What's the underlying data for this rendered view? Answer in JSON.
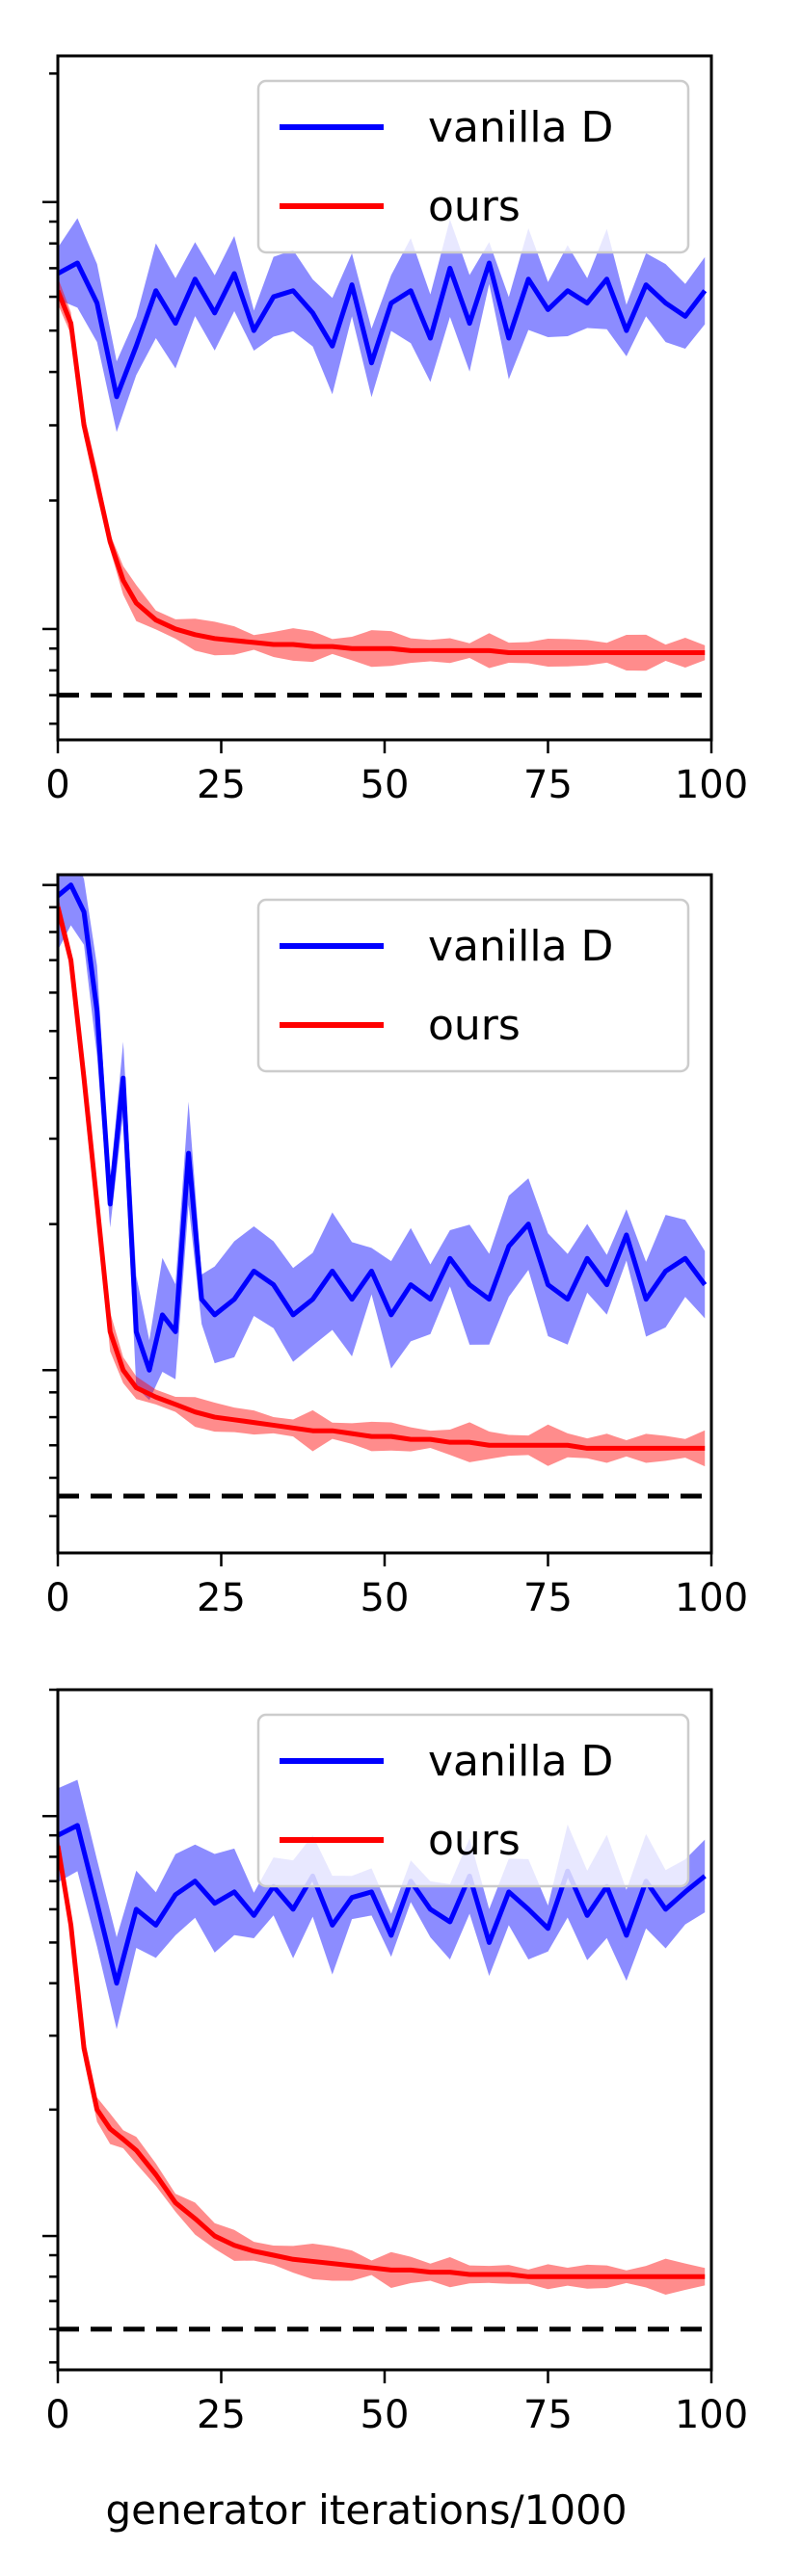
{
  "figure": {
    "xlabel": "generator iterations/1000"
  },
  "chart_data": [
    {
      "type": "line",
      "xlim": [
        0,
        100
      ],
      "xticks": [
        "0",
        "25",
        "50",
        "75",
        "100"
      ],
      "ylog": true,
      "grid": false,
      "legend": {
        "placement": "top-right",
        "entries": [
          "vanilla D",
          "ours"
        ]
      },
      "colors": {
        "vanilla D": "#0000ff",
        "ours": "#ff0000",
        "reference": "#000000"
      },
      "reference_line": 0.07,
      "series": [
        {
          "name": "vanilla D",
          "x": [
            0,
            3,
            6,
            9,
            12,
            15,
            18,
            21,
            24,
            27,
            30,
            33,
            36,
            39,
            42,
            45,
            48,
            51,
            54,
            57,
            60,
            63,
            66,
            69,
            72,
            75,
            78,
            81,
            84,
            87,
            90,
            93,
            96,
            99
          ],
          "y": [
            0.68,
            0.72,
            0.58,
            0.35,
            0.46,
            0.62,
            0.52,
            0.66,
            0.55,
            0.68,
            0.5,
            0.6,
            0.62,
            0.55,
            0.46,
            0.64,
            0.42,
            0.58,
            0.62,
            0.48,
            0.7,
            0.52,
            0.72,
            0.48,
            0.66,
            0.56,
            0.62,
            0.58,
            0.66,
            0.5,
            0.64,
            0.58,
            0.54,
            0.62
          ]
        },
        {
          "name": "ours",
          "x": [
            0,
            2,
            4,
            6,
            8,
            10,
            12,
            15,
            18,
            21,
            24,
            27,
            30,
            33,
            36,
            39,
            42,
            45,
            48,
            51,
            54,
            57,
            60,
            63,
            66,
            69,
            72,
            75,
            78,
            81,
            84,
            87,
            90,
            93,
            96,
            99
          ],
          "y": [
            0.62,
            0.52,
            0.3,
            0.22,
            0.16,
            0.13,
            0.115,
            0.105,
            0.1,
            0.097,
            0.095,
            0.094,
            0.093,
            0.092,
            0.092,
            0.091,
            0.091,
            0.09,
            0.09,
            0.09,
            0.089,
            0.089,
            0.089,
            0.089,
            0.089,
            0.088,
            0.088,
            0.088,
            0.088,
            0.088,
            0.088,
            0.088,
            0.088,
            0.088,
            0.088,
            0.088
          ]
        }
      ]
    },
    {
      "type": "line",
      "xlim": [
        0,
        100
      ],
      "xticks": [
        "0",
        "25",
        "50",
        "75",
        "100"
      ],
      "ylog": true,
      "grid": false,
      "legend": {
        "placement": "top-right",
        "entries": [
          "vanilla D",
          "ours"
        ]
      },
      "colors": {
        "vanilla D": "#0000ff",
        "ours": "#ff0000",
        "reference": "#000000"
      },
      "reference_line": 0.055,
      "series": [
        {
          "name": "vanilla D",
          "x": [
            0,
            2,
            4,
            6,
            8,
            10,
            12,
            14,
            16,
            18,
            20,
            22,
            24,
            27,
            30,
            33,
            36,
            39,
            42,
            45,
            48,
            51,
            54,
            57,
            60,
            63,
            66,
            69,
            72,
            75,
            78,
            81,
            84,
            87,
            90,
            93,
            96,
            99
          ],
          "y": [
            0.95,
            1.0,
            0.88,
            0.55,
            0.22,
            0.4,
            0.12,
            0.1,
            0.13,
            0.12,
            0.28,
            0.14,
            0.13,
            0.14,
            0.16,
            0.15,
            0.13,
            0.14,
            0.16,
            0.14,
            0.16,
            0.13,
            0.15,
            0.14,
            0.17,
            0.15,
            0.14,
            0.18,
            0.2,
            0.15,
            0.14,
            0.17,
            0.15,
            0.19,
            0.14,
            0.16,
            0.17,
            0.15
          ]
        },
        {
          "name": "ours",
          "x": [
            0,
            2,
            4,
            6,
            8,
            10,
            12,
            15,
            18,
            21,
            24,
            27,
            30,
            33,
            36,
            39,
            42,
            45,
            48,
            51,
            54,
            57,
            60,
            63,
            66,
            69,
            72,
            75,
            78,
            81,
            84,
            87,
            90,
            93,
            96,
            99
          ],
          "y": [
            0.9,
            0.7,
            0.4,
            0.22,
            0.12,
            0.1,
            0.092,
            0.088,
            0.085,
            0.082,
            0.08,
            0.079,
            0.078,
            0.077,
            0.076,
            0.075,
            0.075,
            0.074,
            0.073,
            0.073,
            0.072,
            0.072,
            0.071,
            0.071,
            0.07,
            0.07,
            0.07,
            0.07,
            0.07,
            0.069,
            0.069,
            0.069,
            0.069,
            0.069,
            0.069,
            0.069
          ]
        }
      ]
    },
    {
      "type": "line",
      "xlim": [
        0,
        100
      ],
      "xticks": [
        "0",
        "25",
        "50",
        "75",
        "100"
      ],
      "ylog": true,
      "grid": false,
      "legend": {
        "placement": "top-right",
        "entries": [
          "vanilla D",
          "ours"
        ]
      },
      "colors": {
        "vanilla D": "#0000ff",
        "ours": "#ff0000",
        "reference": "#000000"
      },
      "reference_line": 0.06,
      "series": [
        {
          "name": "vanilla D",
          "x": [
            0,
            3,
            6,
            9,
            12,
            15,
            18,
            21,
            24,
            27,
            30,
            33,
            36,
            39,
            42,
            45,
            48,
            51,
            54,
            57,
            60,
            63,
            66,
            69,
            72,
            75,
            78,
            81,
            84,
            87,
            90,
            93,
            96,
            99
          ],
          "y": [
            0.9,
            0.95,
            0.62,
            0.4,
            0.6,
            0.55,
            0.65,
            0.7,
            0.62,
            0.66,
            0.58,
            0.68,
            0.6,
            0.72,
            0.55,
            0.64,
            0.66,
            0.52,
            0.7,
            0.6,
            0.56,
            0.72,
            0.5,
            0.66,
            0.6,
            0.54,
            0.74,
            0.58,
            0.68,
            0.52,
            0.7,
            0.6,
            0.66,
            0.72
          ]
        },
        {
          "name": "ours",
          "x": [
            0,
            2,
            4,
            6,
            8,
            10,
            12,
            15,
            18,
            21,
            24,
            27,
            30,
            33,
            36,
            39,
            42,
            45,
            48,
            51,
            54,
            57,
            60,
            63,
            66,
            69,
            72,
            75,
            78,
            81,
            84,
            87,
            90,
            93,
            96,
            99
          ],
          "y": [
            0.85,
            0.55,
            0.28,
            0.2,
            0.18,
            0.17,
            0.16,
            0.14,
            0.12,
            0.11,
            0.1,
            0.095,
            0.092,
            0.09,
            0.088,
            0.087,
            0.086,
            0.085,
            0.084,
            0.083,
            0.083,
            0.082,
            0.082,
            0.081,
            0.081,
            0.081,
            0.08,
            0.08,
            0.08,
            0.08,
            0.08,
            0.08,
            0.08,
            0.08,
            0.08,
            0.08
          ]
        }
      ]
    }
  ]
}
